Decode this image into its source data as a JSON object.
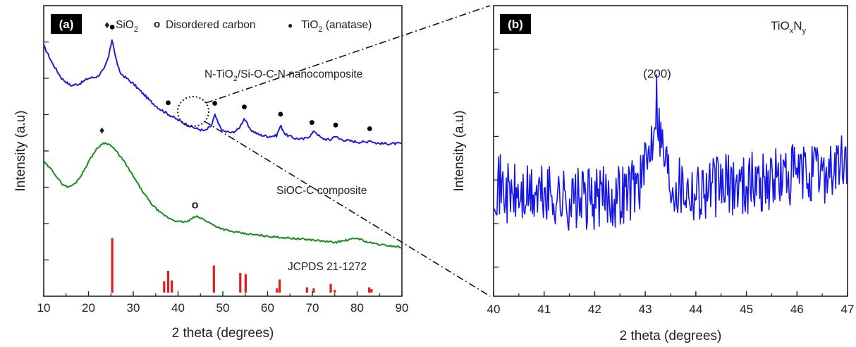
{
  "colors": {
    "nanocomposite": "#1f1fd6",
    "sioc_c": "#1e8a1e",
    "jcpds": "#e01b1b",
    "panel_b": "#1515ea",
    "axis": "#222222",
    "zoom_lines": "#111111"
  },
  "chart_data": [
    {
      "type": "line",
      "panel_label": "(a)",
      "xlabel": "2 theta (degrees)",
      "ylabel": "Intensity (a.u)",
      "xlim": [
        10,
        90
      ],
      "xticks": [
        10,
        20,
        30,
        40,
        50,
        60,
        70,
        80,
        90
      ],
      "y_tick_labels_shown": false,
      "grid": false,
      "legend": {
        "position": "top",
        "entries": [
          {
            "marker": "♦",
            "label": "SiO",
            "sub": "2"
          },
          {
            "marker": "o",
            "label": "Disordered carbon",
            "sub": ""
          },
          {
            "marker": "●",
            "label": "TiO",
            "sub": "2",
            "suffix": " (anatase)"
          }
        ]
      },
      "series": [
        {
          "name": "N-TiO2/Si-O-C-N nanocomposite",
          "label_parts": {
            "before": "N-TiO",
            "sub": "2",
            "after": "/Si-O-C-N nanocomposite"
          },
          "x": [
            10,
            12,
            14,
            16,
            18,
            20,
            22,
            23.5,
            24.5,
            25.3,
            26,
            27,
            28,
            30,
            32,
            34,
            36,
            38,
            40,
            42,
            44,
            46,
            47.5,
            48.2,
            49,
            50,
            52,
            53.5,
            54.8,
            56,
            58,
            60,
            62,
            62.9,
            64,
            66,
            68,
            69.5,
            70.5,
            72,
            74,
            75,
            76,
            78,
            80,
            82,
            82.8,
            84,
            86,
            88,
            90
          ],
          "y": [
            6.9,
            6.4,
            6.0,
            5.8,
            5.85,
            6.0,
            6.05,
            6.25,
            6.6,
            7.1,
            6.6,
            6.15,
            6.05,
            5.85,
            5.6,
            5.35,
            5.15,
            5.0,
            4.85,
            4.72,
            4.62,
            4.55,
            4.7,
            5.0,
            4.75,
            4.55,
            4.5,
            4.6,
            4.9,
            4.6,
            4.45,
            4.4,
            4.42,
            4.7,
            4.45,
            4.35,
            4.32,
            4.42,
            4.55,
            4.35,
            4.3,
            4.42,
            4.33,
            4.28,
            4.25,
            4.24,
            4.3,
            4.22,
            4.2,
            4.2,
            4.2
          ]
        },
        {
          "name": "SiOC-C composite",
          "x": [
            10,
            12,
            14,
            15.5,
            17,
            18.5,
            20,
            21.5,
            23,
            24,
            25,
            26.5,
            28,
            30,
            32,
            34,
            36,
            38,
            40,
            42,
            44,
            46,
            48,
            50,
            52,
            55,
            58,
            60,
            65,
            70,
            75,
            78,
            80,
            82,
            85,
            88,
            90
          ],
          "y": [
            3.7,
            3.45,
            3.1,
            3.0,
            3.1,
            3.35,
            3.7,
            4.0,
            4.2,
            4.22,
            4.15,
            3.95,
            3.7,
            3.3,
            2.9,
            2.55,
            2.3,
            2.15,
            2.05,
            2.05,
            2.2,
            2.1,
            1.95,
            1.85,
            1.78,
            1.72,
            1.68,
            1.65,
            1.6,
            1.55,
            1.48,
            1.55,
            1.6,
            1.5,
            1.42,
            1.38,
            1.35
          ]
        },
        {
          "name": "JCPDS 21-1272",
          "style": "sticks",
          "x": [
            25.3,
            36.9,
            37.8,
            38.6,
            48.0,
            53.9,
            55.1,
            62.1,
            62.7,
            68.8,
            70.3,
            74.1,
            75.0,
            82.7,
            83.2
          ],
          "y": [
            1.25,
            0.26,
            0.5,
            0.28,
            0.62,
            0.45,
            0.42,
            0.1,
            0.3,
            0.12,
            0.1,
            0.2,
            0.06,
            0.12,
            0.08
          ]
        }
      ],
      "peak_markers": {
        "anatase_dot": {
          "symbol": "●",
          "x": [
            25.3,
            37.8,
            48.2,
            54.8,
            62.9,
            69.9,
            75.2,
            82.8
          ]
        },
        "sio2_diamond": {
          "symbol": "♦",
          "x": [
            23.0
          ]
        },
        "carbon_circle": {
          "symbol": "o",
          "x": [
            43.8
          ]
        }
      },
      "annotations": [
        {
          "text": "SiOC-C composite"
        },
        {
          "text": "JCPDS 21-1272"
        }
      ]
    },
    {
      "type": "line",
      "panel_label": "(b)",
      "xlabel": "2 theta (degrees)",
      "ylabel": "Intensity (a.u)",
      "xlim": [
        40,
        47
      ],
      "xticks": [
        40,
        41,
        42,
        43,
        44,
        45,
        46,
        47
      ],
      "y_tick_labels_shown": false,
      "grid": false,
      "phase_label": {
        "before": "TiO",
        "sub1": "x",
        "mid": "N",
        "sub2": "y"
      },
      "peak_label": {
        "text": "(200)",
        "x": 43.2
      },
      "series": [
        {
          "name": "TiOxNy",
          "x_start": 40,
          "x_end": 47,
          "anchors": {
            "x": [
              40,
              40.3,
              40.6,
              41.0,
              41.5,
              42.0,
              42.4,
              42.7,
              43.0,
              43.15,
              43.22,
              43.3,
              43.5,
              44.0,
              44.5,
              45.0,
              45.5,
              46.0,
              46.5,
              47.0
            ],
            "y": [
              0.4,
              0.3,
              0.28,
              0.3,
              0.26,
              0.27,
              0.29,
              0.34,
              0.45,
              0.75,
              1.0,
              0.7,
              0.4,
              0.33,
              0.36,
              0.38,
              0.4,
              0.43,
              0.45,
              0.52
            ]
          },
          "noise_amplitude": 0.22,
          "points": 420
        }
      ]
    }
  ],
  "zoom_indicator": {
    "from_panel": "(a)",
    "to_panel": "(b)",
    "region_center_x": 43
  }
}
